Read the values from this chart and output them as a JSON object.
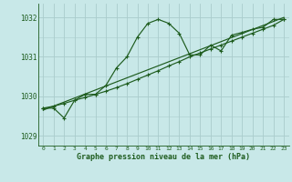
{
  "line1_x": [
    0,
    1,
    2,
    3,
    4,
    5,
    6,
    7,
    8,
    9,
    10,
    11,
    12,
    13,
    14,
    15,
    16,
    17,
    18,
    19,
    20,
    21,
    22,
    23
  ],
  "line1_y": [
    1029.7,
    1029.7,
    1029.45,
    1029.9,
    1030.05,
    1030.05,
    1030.28,
    1030.72,
    1031.0,
    1031.5,
    1031.85,
    1031.95,
    1031.85,
    1031.6,
    1031.05,
    1031.05,
    1031.3,
    1031.15,
    1031.55,
    1031.62,
    1031.7,
    1031.75,
    1031.95,
    1031.95
  ],
  "line2_x": [
    0,
    1,
    2,
    3,
    4,
    5,
    6,
    7,
    8,
    9,
    10,
    11,
    12,
    13,
    14,
    15,
    16,
    17,
    18,
    19,
    20,
    21,
    22,
    23
  ],
  "line2_y": [
    1029.7,
    1029.75,
    1029.82,
    1029.9,
    1029.97,
    1030.05,
    1030.13,
    1030.22,
    1030.32,
    1030.43,
    1030.54,
    1030.65,
    1030.77,
    1030.88,
    1031.0,
    1031.1,
    1031.2,
    1031.3,
    1031.4,
    1031.5,
    1031.6,
    1031.7,
    1031.8,
    1031.95
  ],
  "line3_x": [
    0,
    23
  ],
  "line3_y": [
    1029.65,
    1032.0
  ],
  "line_color": "#1e5c1e",
  "bg_color": "#c8e8e8",
  "grid_color": "#aacccc",
  "xlabel": "Graphe pression niveau de la mer (hPa)",
  "yticks": [
    1029,
    1030,
    1031,
    1032
  ],
  "xticks": [
    0,
    1,
    2,
    3,
    4,
    5,
    6,
    7,
    8,
    9,
    10,
    11,
    12,
    13,
    14,
    15,
    16,
    17,
    18,
    19,
    20,
    21,
    22,
    23
  ],
  "ylim": [
    1028.75,
    1032.35
  ],
  "xlim": [
    -0.5,
    23.5
  ]
}
